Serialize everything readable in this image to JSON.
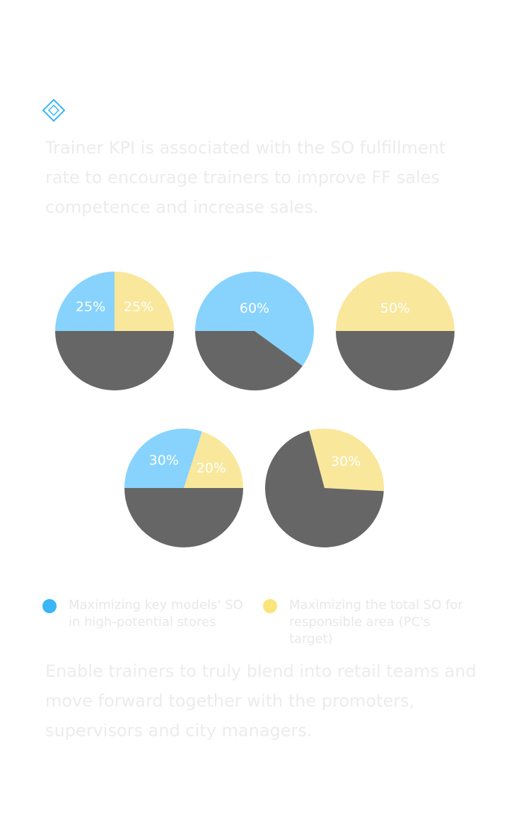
{
  "heading": "",
  "bullet_text": "",
  "para_top": "Trainer KPI is associated with the SO fulfillment rate to encourage trainers to improve FF sales competence and increase sales.",
  "para_bottom": "Enable trainers to truly blend into retail teams and move forward together with the promoters, supervisors and city managers.",
  "colors": {
    "blue": "#87d3fd",
    "yellow": "#f9e79c",
    "gray": "#666666",
    "legend_blue": "#39b5f8",
    "legend_yellow": "#fbe47c",
    "icon": "#39b5f8"
  },
  "icons": {
    "bullet": "diamond-icon"
  },
  "legend": [
    {
      "label": "Maximizing key models' SO in high-potential stores",
      "color": "#39b5f8"
    },
    {
      "label": "Maximizing the total SO for responsible area (PC's target)",
      "color": "#fbe47c"
    }
  ],
  "chart_data": [
    {
      "type": "pie",
      "title": "",
      "slices": [
        {
          "label": "25%",
          "value": 25,
          "color": "#87d3fd"
        },
        {
          "label": "25%",
          "value": 25,
          "color": "#f9e79c"
        },
        {
          "label": "",
          "value": 50,
          "color": "#666666"
        }
      ]
    },
    {
      "type": "pie",
      "title": "",
      "slices": [
        {
          "label": "60%",
          "value": 60,
          "color": "#87d3fd"
        },
        {
          "label": "",
          "value": 40,
          "color": "#666666"
        }
      ]
    },
    {
      "type": "pie",
      "title": "",
      "slices": [
        {
          "label": "50%",
          "value": 50,
          "color": "#f9e79c"
        },
        {
          "label": "",
          "value": 50,
          "color": "#666666"
        }
      ]
    },
    {
      "type": "pie",
      "title": "",
      "slices": [
        {
          "label": "30%",
          "value": 30,
          "color": "#87d3fd"
        },
        {
          "label": "20%",
          "value": 20,
          "color": "#f9e79c"
        },
        {
          "label": "",
          "value": 50,
          "color": "#666666"
        }
      ]
    },
    {
      "type": "pie",
      "title": "",
      "slices": [
        {
          "label": "30%",
          "value": 30,
          "color": "#f9e79c"
        },
        {
          "label": "",
          "value": 70,
          "color": "#666666"
        }
      ]
    }
  ]
}
